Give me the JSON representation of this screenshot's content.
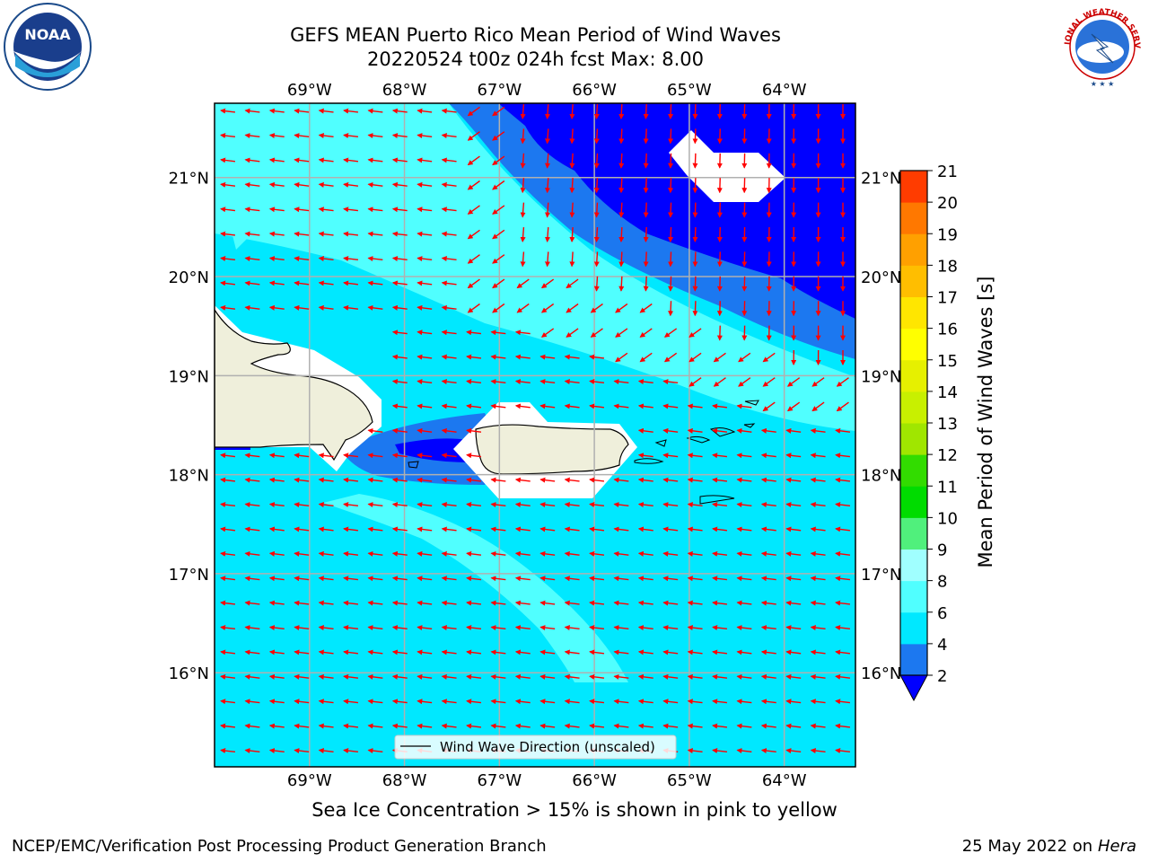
{
  "title": {
    "line1": "GEFS MEAN Puerto Rico Mean Period of Wind Waves",
    "line2": "20220524 t00z 024h fcst   Max: 8.00"
  },
  "map": {
    "lon_labels": [
      "69°W",
      "68°W",
      "67°W",
      "66°W",
      "65°W",
      "64°W"
    ],
    "lat_labels": [
      "21°N",
      "20°N",
      "19°N",
      "18°N",
      "17°N",
      "16°N"
    ],
    "lon_values": [
      -69,
      -68,
      -67,
      -66,
      -65,
      -64
    ],
    "lat_values": [
      21,
      20,
      19,
      18,
      17,
      16
    ],
    "lon_range": [
      -70,
      -63.25
    ],
    "lat_range": [
      15.05,
      21.75
    ],
    "grid": true,
    "legend_text": "Wind Wave Direction (unscaled)",
    "vector_color": "#ff0000",
    "land_color": "#efefdb"
  },
  "colorbar": {
    "label": "Mean Period of Wind Waves [s]",
    "ticks": [
      "2",
      "4",
      "6",
      "8",
      "9",
      "10",
      "11",
      "12",
      "13",
      "14",
      "15",
      "16",
      "17",
      "18",
      "19",
      "20",
      "21"
    ],
    "colors": [
      "#1c78f0",
      "#00e8ff",
      "#50ffff",
      "#a0ffff",
      "#50f07c",
      "#00dc00",
      "#32dc00",
      "#a0e600",
      "#c8f000",
      "#e6f000",
      "#ffff00",
      "#ffe600",
      "#ffbe00",
      "#ffa000",
      "#ff7800",
      "#ff3c00"
    ],
    "extend_color": "#0000ff"
  },
  "chart_data": {
    "type": "heatmap",
    "title": "GEFS MEAN Puerto Rico Mean Period of Wind Waves",
    "subtitle": "20220524 t00z 024h fcst   Max: 8.00",
    "variable": "Mean Period of Wind Waves [s]",
    "max_value": 8.0,
    "levels": [
      2,
      4,
      6,
      8,
      9,
      10,
      11,
      12,
      13,
      14,
      15,
      16,
      17,
      18,
      19,
      20,
      21
    ],
    "xlim": [
      -70,
      -63.25
    ],
    "ylim": [
      15.05,
      21.75
    ],
    "regions": [
      {
        "range": "<2",
        "area": "northeast offshore"
      },
      {
        "range": "2-4",
        "area": "band north of the islands"
      },
      {
        "range": "4-6",
        "area": "south of islands and open Caribbean"
      },
      {
        "range": "6-8",
        "area": "northwest and central Caribbean"
      }
    ],
    "vector_direction": "predominantly westward; southward in the northeast"
  },
  "note": "Sea Ice Concentration > 15% is shown in pink to yellow",
  "footer": {
    "left": "NCEP/EMC/Verification Post Processing Product Generation Branch",
    "right_date": "25 May 2022 on",
    "right_host": "Hera"
  },
  "logos": {
    "noaa_text": "NOAA",
    "nws_text": "NATIONAL WEATHER SERVICE"
  }
}
